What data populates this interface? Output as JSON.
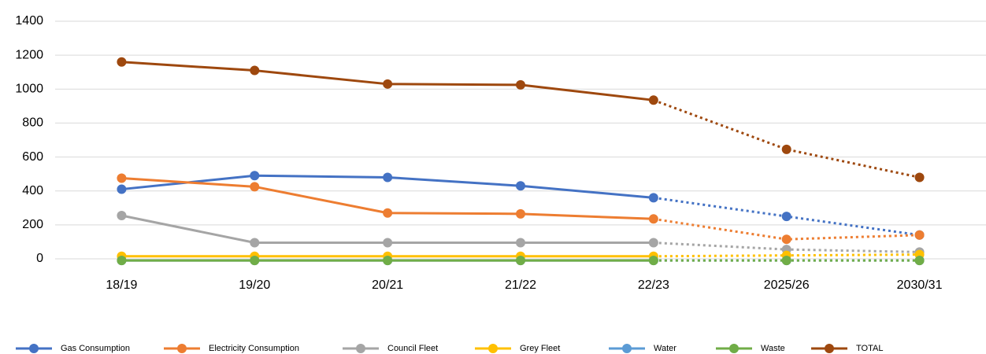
{
  "chart_data": {
    "type": "line",
    "categories": [
      "18/19",
      "19/20",
      "20/21",
      "21/22",
      "22/23",
      "2025/26",
      "2030/31"
    ],
    "series": [
      {
        "name": "Gas Consumption",
        "color": "#4472c4",
        "values": [
          410,
          490,
          480,
          430,
          360,
          250,
          140
        ]
      },
      {
        "name": "Electricity Consumption",
        "color": "#ed7d31",
        "values": [
          475,
          425,
          270,
          265,
          235,
          115,
          140
        ]
      },
      {
        "name": "Council Fleet",
        "color": "#a5a5a5",
        "values": [
          255,
          95,
          95,
          95,
          95,
          55,
          40
        ]
      },
      {
        "name": "Grey Fleet",
        "color": "#ffc000",
        "values": [
          15,
          15,
          15,
          15,
          15,
          20,
          25
        ]
      },
      {
        "name": "Water",
        "color": "#5b9bd5",
        "values": [
          -10,
          -10,
          -10,
          -10,
          -10,
          -10,
          -10
        ]
      },
      {
        "name": "Waste",
        "color": "#70ad47",
        "values": [
          -10,
          -10,
          -10,
          -10,
          -10,
          -10,
          -10
        ]
      },
      {
        "name": "TOTAL",
        "color": "#9e480e",
        "values": [
          1160,
          1110,
          1030,
          1025,
          935,
          645,
          480
        ]
      }
    ],
    "ylim": [
      0,
      1400
    ],
    "yticks": [
      0,
      200,
      400,
      600,
      800,
      1000,
      1200,
      1400
    ],
    "grid": true,
    "legend": "bottom",
    "dashed_from_index": 4
  }
}
